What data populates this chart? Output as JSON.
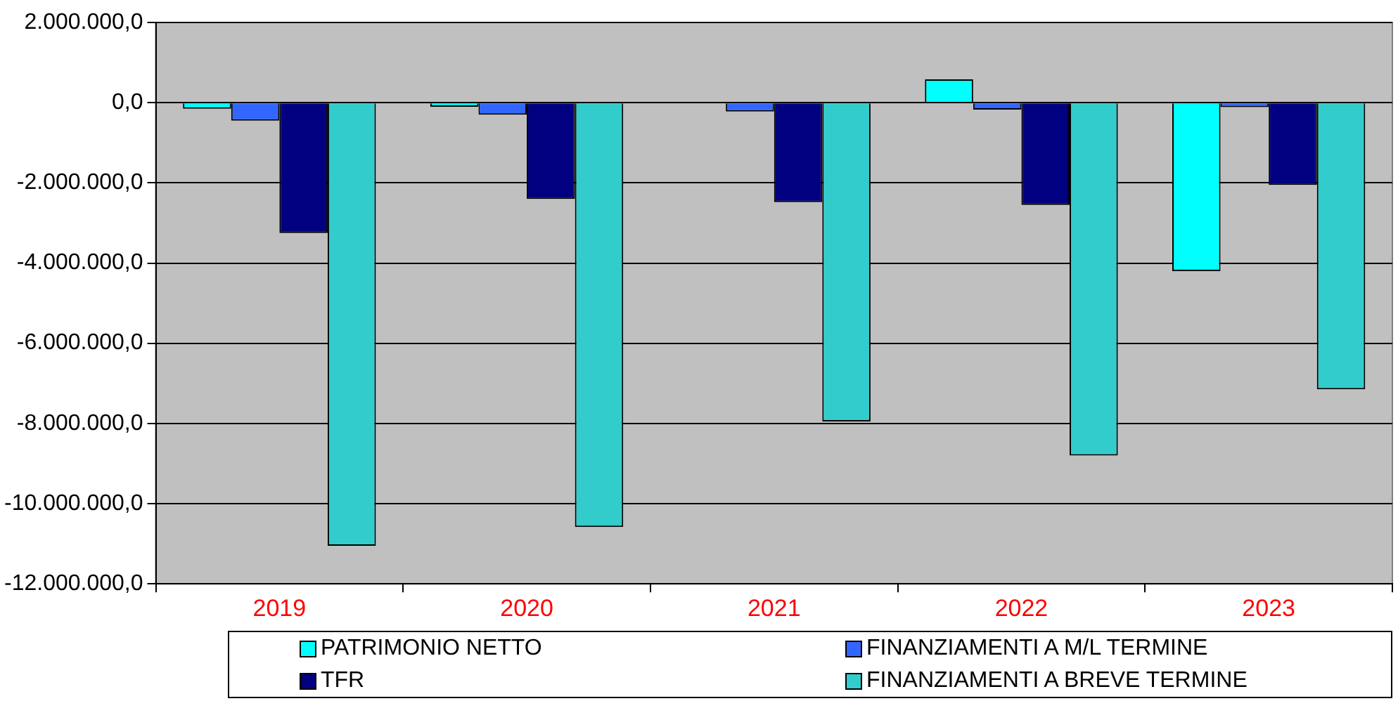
{
  "chart_data": {
    "type": "bar",
    "categories": [
      "2019",
      "2020",
      "2021",
      "2022",
      "2023"
    ],
    "series": [
      {
        "name": "PATRIMONIO NETTO",
        "color": "#00ffff",
        "values": [
          -150000,
          -100000,
          null,
          580000,
          -4200000
        ]
      },
      {
        "name": "FINANZIAMENTI A M/L TERMINE",
        "color": "#3366ff",
        "values": [
          -450000,
          -300000,
          -220000,
          -170000,
          -110000
        ]
      },
      {
        "name": "TFR",
        "color": "#000080",
        "values": [
          -3250000,
          -2400000,
          -2480000,
          -2550000,
          -2050000
        ]
      },
      {
        "name": "FINANZIAMENTI A BREVE TERMINE",
        "color": "#33cccc",
        "values": [
          -11050000,
          -10580000,
          -7950000,
          -8800000,
          -7150000
        ]
      }
    ],
    "ylim": [
      -12000000,
      2000000
    ],
    "yticks": [
      {
        "value": -12000000,
        "label": "-12.000.000,0"
      },
      {
        "value": -10000000,
        "label": "-10.000.000,0"
      },
      {
        "value": -8000000,
        "label": "-8.000.000,0"
      },
      {
        "value": -6000000,
        "label": "-6.000.000,0"
      },
      {
        "value": -4000000,
        "label": "-4.000.000,0"
      },
      {
        "value": -2000000,
        "label": "-2.000.000,0"
      },
      {
        "value": 0,
        "label": "0,0"
      },
      {
        "value": 2000000,
        "label": "2.000.000,0"
      }
    ],
    "grid": "y",
    "legend": "bottom"
  }
}
